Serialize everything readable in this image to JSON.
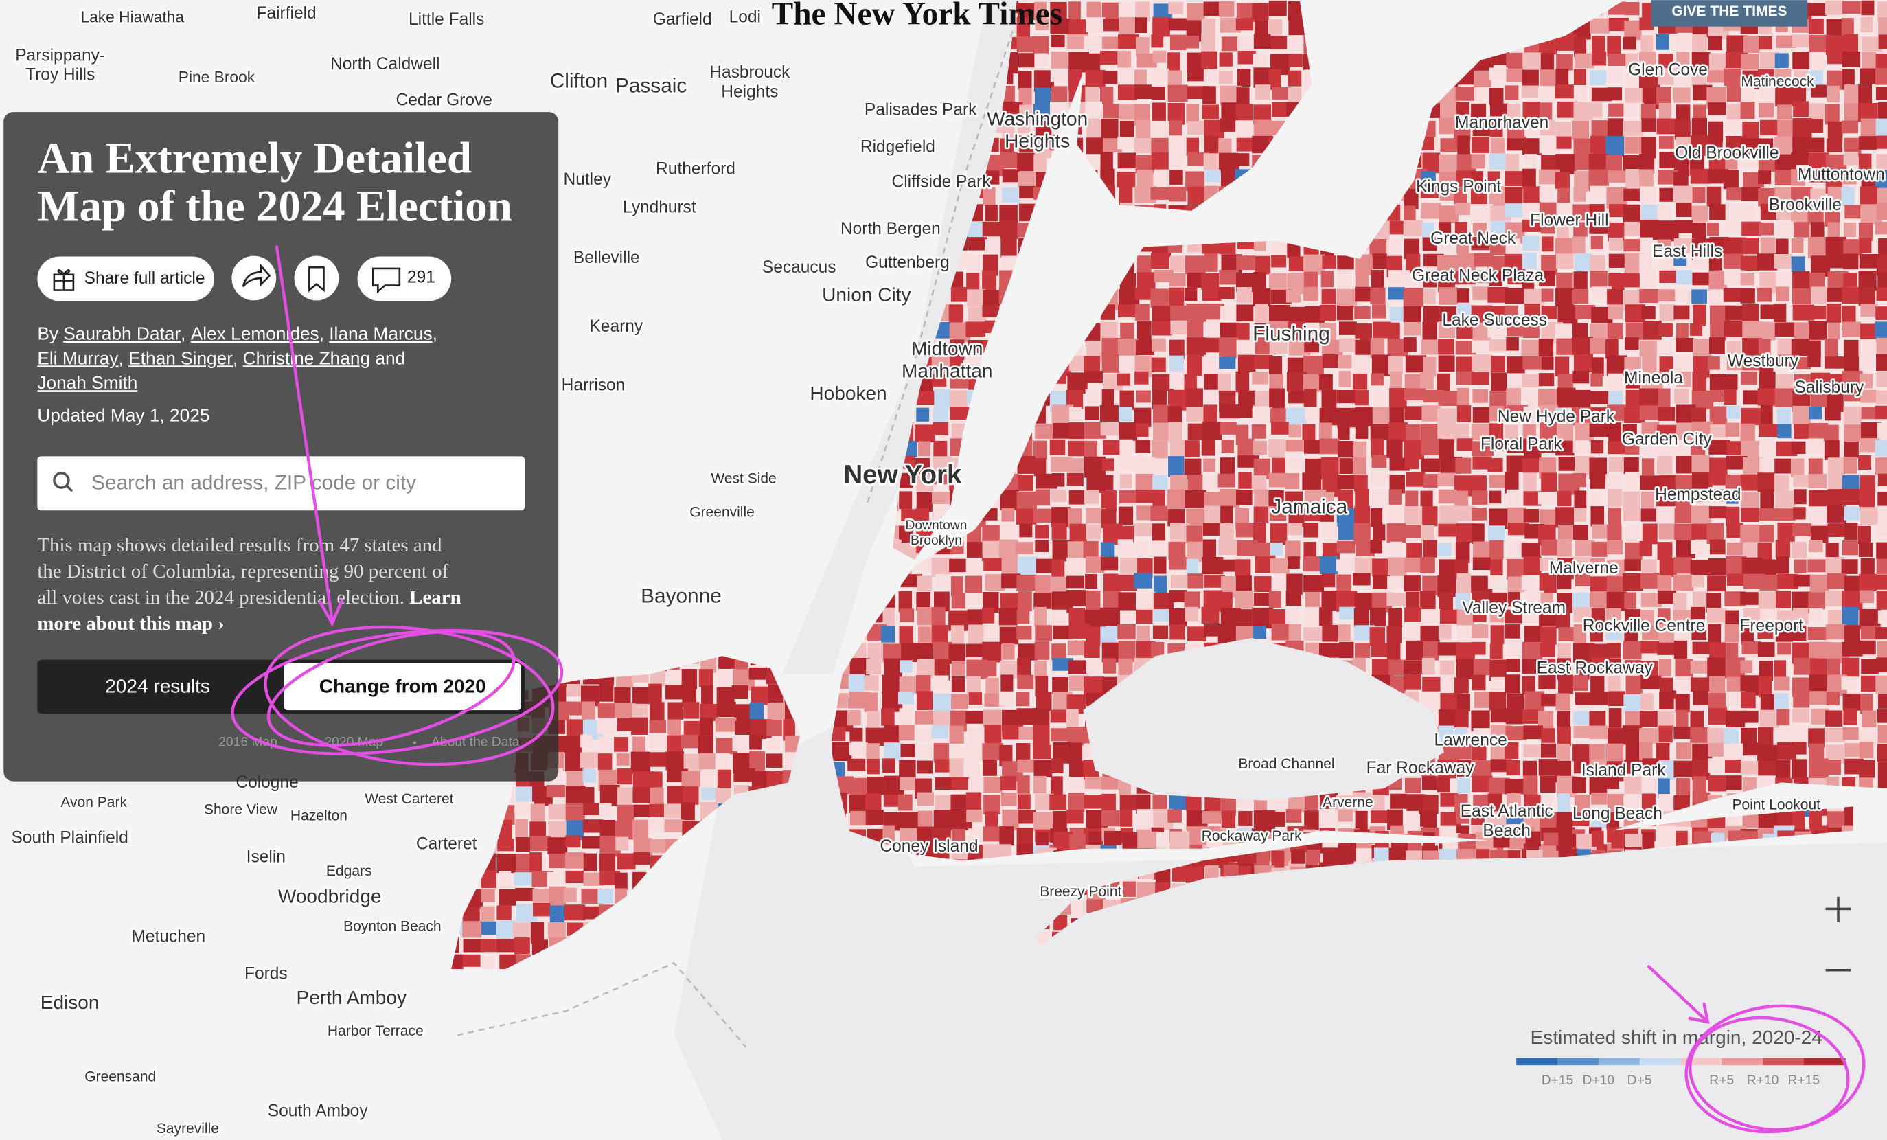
{
  "header": {
    "logo": "The New York Times",
    "give_button": "GIVE THE TIMES"
  },
  "panel": {
    "title_lines": [
      "An Extremely Detailed",
      "Map of the 2024 Election"
    ],
    "share_button": "Share full article",
    "comment_count": 291,
    "byline": [
      [
        {
          "text": "By "
        },
        {
          "text": "Saurabh Datar",
          "link": true
        },
        {
          "text": ", "
        },
        {
          "text": "Alex Lemonides",
          "link": true
        },
        {
          "text": ", "
        },
        {
          "text": "Ilana Marcus",
          "link": true
        },
        {
          "text": ","
        }
      ],
      [
        {
          "text": "Eli Murray",
          "link": true
        },
        {
          "text": ", "
        },
        {
          "text": "Ethan Singer",
          "link": true
        },
        {
          "text": ", "
        },
        {
          "text": "Christine Zhang",
          "link": true
        },
        {
          "text": " and"
        }
      ],
      [
        {
          "text": "Jonah Smith",
          "link": true
        }
      ]
    ],
    "updated": "Updated May 1, 2025",
    "search_placeholder": "Search an address, ZIP code or city",
    "description": [
      [
        {
          "text": "This map shows detailed results from 47 states and"
        }
      ],
      [
        {
          "text": "the District of Columbia, representing 90 percent of"
        }
      ],
      [
        {
          "text": "all votes cast in the 2024 presidential election. "
        },
        {
          "text": "Learn",
          "bold": true
        }
      ],
      [
        {
          "text": "more about this map ›",
          "bold": true
        }
      ]
    ],
    "toggle": {
      "options": [
        "2024 results",
        "Change from 2020"
      ],
      "active": 1
    },
    "links": [
      "2016 Map",
      "2020 Map",
      "About the Data"
    ]
  },
  "map": {
    "places": [
      [
        "Lake Hiawatha"
      ],
      [
        "Fairfield"
      ],
      [
        "Little Falls"
      ],
      [
        "Garfield"
      ],
      [
        "Lodi"
      ],
      [
        "Parsippany-",
        "Troy Hills"
      ],
      [
        "Pine Brook"
      ],
      [
        "North Caldwell"
      ],
      [
        "Cedar Grove"
      ],
      [
        "Clifton"
      ],
      [
        "Passaic"
      ],
      [
        "Hasbrouck",
        "Heights"
      ],
      [
        "Palisades Park"
      ],
      [
        "Washington",
        "Heights"
      ],
      [
        "Ridgefield"
      ],
      [
        "Rutherford"
      ],
      [
        "Nutley"
      ],
      [
        "Cliffside Park"
      ],
      [
        "Lyndhurst"
      ],
      [
        "North Bergen"
      ],
      [
        "Belleville"
      ],
      [
        "Secaucus"
      ],
      [
        "Guttenberg"
      ],
      [
        "Union City"
      ],
      [
        "Kearny"
      ],
      [
        "Midtown",
        "Manhattan"
      ],
      [
        "Harrison"
      ],
      [
        "Hoboken"
      ],
      [
        "New York"
      ],
      [
        "West Side"
      ],
      [
        "Greenville"
      ],
      [
        "Downtown",
        "Brooklyn"
      ],
      [
        "Bayonne"
      ],
      [
        "Glen Cove"
      ],
      [
        "Matinecock"
      ],
      [
        "Manorhaven"
      ],
      [
        "Old Brookville"
      ],
      [
        "Muttontown"
      ],
      [
        "Kings Point"
      ],
      [
        "Brookville"
      ],
      [
        "Flower Hill"
      ],
      [
        "Great Neck"
      ],
      [
        "East Hills"
      ],
      [
        "Great Neck Plaza"
      ],
      [
        "Lake Success"
      ],
      [
        "Flushing"
      ],
      [
        "Westbury"
      ],
      [
        "Mineola"
      ],
      [
        "Salisbury"
      ],
      [
        "New Hyde Park"
      ],
      [
        "Garden City"
      ],
      [
        "Floral Park"
      ],
      [
        "Hempstead"
      ],
      [
        "Jamaica"
      ],
      [
        "Malverne"
      ],
      [
        "Valley Stream"
      ],
      [
        "Rockville Centre"
      ],
      [
        "Freeport"
      ],
      [
        "East Rockaway"
      ],
      [
        "Lawrence"
      ],
      [
        "Broad Channel"
      ],
      [
        "Far Rockaway"
      ],
      [
        "Island Park"
      ],
      [
        "Arverne"
      ],
      [
        "Point Lookout"
      ],
      [
        "Long Beach"
      ],
      [
        "East Atlantic",
        "Beach"
      ],
      [
        "Rockaway Park"
      ],
      [
        "Coney Island"
      ],
      [
        "Breezy Point"
      ],
      [
        "Cologne"
      ],
      [
        "West Carteret"
      ],
      [
        "Avon Park"
      ],
      [
        "Shore View"
      ],
      [
        "Hazelton"
      ],
      [
        "South Plainfield"
      ],
      [
        "Carteret"
      ],
      [
        "Iselin"
      ],
      [
        "Edgars"
      ],
      [
        "Woodbridge"
      ],
      [
        "Boynton Beach"
      ],
      [
        "Metuchen"
      ],
      [
        "Fords"
      ],
      [
        "Perth Amboy"
      ],
      [
        "Edison"
      ],
      [
        "Harbor Terrace"
      ],
      [
        "Greensand"
      ],
      [
        "South Amboy"
      ],
      [
        "Sayreville"
      ]
    ]
  },
  "legend": {
    "title": "Estimated shift in margin, 2020-24",
    "colors": [
      "#2f6db3",
      "#5a8fcb",
      "#8fb5de",
      "#c6daf0",
      "#f4c6c6",
      "#e69a9a",
      "#d2585c",
      "#b2272e"
    ],
    "labels": [
      "D+15",
      "D+10",
      "D+5",
      "R+5",
      "R+10",
      "R+15"
    ]
  }
}
